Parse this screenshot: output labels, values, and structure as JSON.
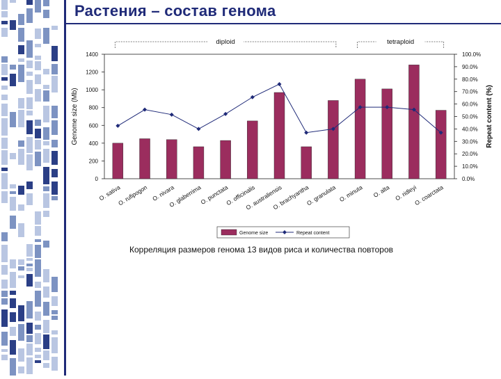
{
  "slide": {
    "title": "Растения – состав генома",
    "caption": "Корреляция размеров генома 13 видов риса и количества повторов"
  },
  "colors": {
    "title": "#1f2a78",
    "bar": "#9b2d5e",
    "line": "#1f2a78",
    "strip": "#6f87b5"
  },
  "chart_data": {
    "type": "bar",
    "title": "",
    "categories": [
      "O. sativa",
      "O. rufipogon",
      "O. nivara",
      "O. glaberrima",
      "O. punctata",
      "O. officinalis",
      "O. australiensis",
      "O. brachyantha",
      "O. granulata",
      "O. minuta",
      "O. alta",
      "O. ridleyi",
      "O. coarctata"
    ],
    "category_groups": [
      {
        "label": "diploid",
        "start": 0,
        "end": 8
      },
      {
        "label": "tetraploid",
        "start": 9,
        "end": 12
      }
    ],
    "series": [
      {
        "name": "Genome size",
        "kind": "bar",
        "axis": "left",
        "values": [
          400,
          450,
          440,
          360,
          430,
          650,
          970,
          360,
          880,
          1120,
          1010,
          1280,
          770
        ]
      },
      {
        "name": "Repeat content",
        "kind": "line",
        "axis": "right",
        "values": [
          42.5,
          55.5,
          51.5,
          40.0,
          52.0,
          65.5,
          76.0,
          37.0,
          40.0,
          57.5,
          57.5,
          55.5,
          37.0
        ]
      }
    ],
    "ylabel": "Genome size (Mb)",
    "ylim": [
      0,
      1400
    ],
    "yticks": [
      "0",
      "200",
      "400",
      "600",
      "800",
      "1000",
      "1200",
      "1400"
    ],
    "y2label": "Repeat content (%)",
    "y2lim": [
      0,
      100
    ],
    "y2ticks": [
      "0.0%",
      "10.0%",
      "20.0%",
      "30.0%",
      "40.0%",
      "50.0%",
      "60.0%",
      "70.0%",
      "80.0%",
      "90.0%",
      "100.0%"
    ],
    "grid": false,
    "legend_position": "bottom"
  }
}
